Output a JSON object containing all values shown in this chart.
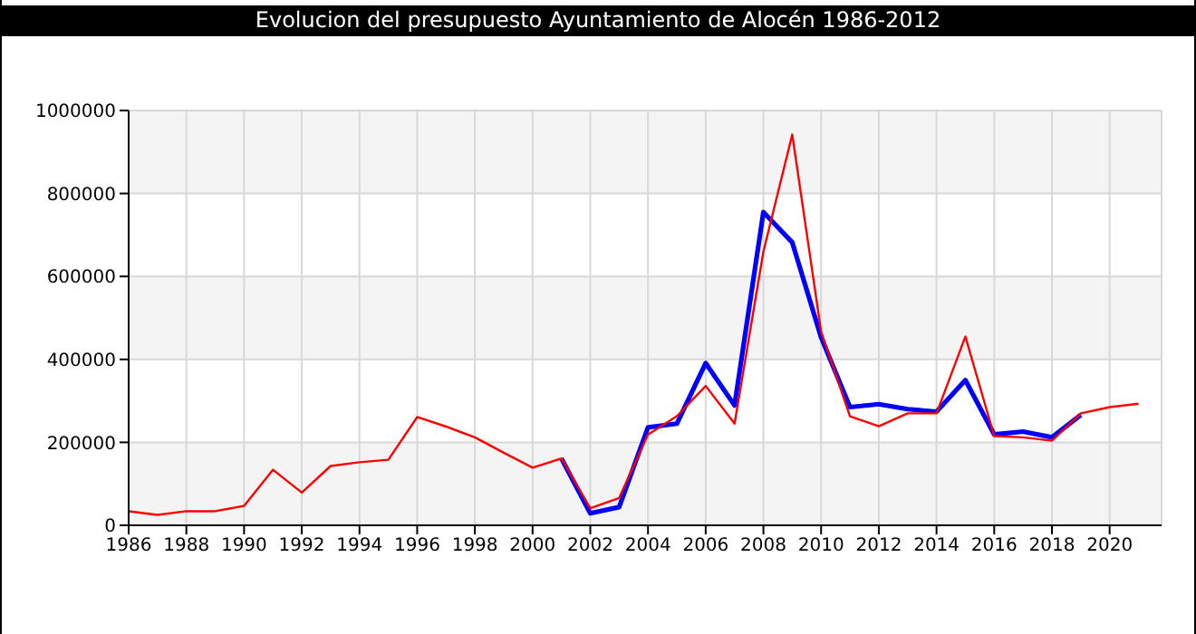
{
  "chart_data": {
    "type": "line",
    "title": "Evolucion del presupuesto Ayuntamiento de Alocén 1986-2012",
    "x": [
      1986,
      1987,
      1988,
      1989,
      1990,
      1991,
      1992,
      1993,
      1994,
      1995,
      1996,
      1997,
      1998,
      1999,
      2000,
      2001,
      2002,
      2003,
      2004,
      2005,
      2006,
      2007,
      2008,
      2009,
      2010,
      2011,
      2012,
      2013,
      2014,
      2015,
      2016,
      2017,
      2018,
      2019,
      2020,
      2021
    ],
    "series": [
      {
        "color": "#0000ff",
        "values": [
          null,
          null,
          null,
          null,
          null,
          null,
          null,
          null,
          null,
          null,
          null,
          null,
          null,
          null,
          null,
          161000,
          29000,
          44000,
          236000,
          245000,
          391000,
          289000,
          755000,
          682000,
          453000,
          285000,
          292000,
          280000,
          274000,
          350000,
          219000,
          226000,
          212000,
          266000,
          null,
          null
        ]
      },
      {
        "color": "#ff0000",
        "values": [
          34000,
          25000,
          34000,
          34000,
          47000,
          134000,
          79000,
          143000,
          152000,
          158000,
          261000,
          238000,
          212000,
          175000,
          139000,
          161000,
          41000,
          66000,
          219000,
          263000,
          336000,
          245000,
          660000,
          942000,
          467000,
          263000,
          239000,
          270000,
          270000,
          455000,
          215000,
          212000,
          204000,
          270000,
          285000,
          293000
        ]
      }
    ],
    "xlim": [
      1986,
      2021.8
    ],
    "xticks": [
      1986,
      1988,
      1990,
      1992,
      1994,
      1996,
      1998,
      2000,
      2002,
      2004,
      2006,
      2008,
      2010,
      2012,
      2014,
      2016,
      2018,
      2020
    ],
    "ylim": [
      0,
      1000000
    ],
    "yticks": [
      0,
      200000,
      400000,
      600000,
      800000,
      1000000
    ],
    "grid": true,
    "marker": "none",
    "line_style": "solid"
  }
}
